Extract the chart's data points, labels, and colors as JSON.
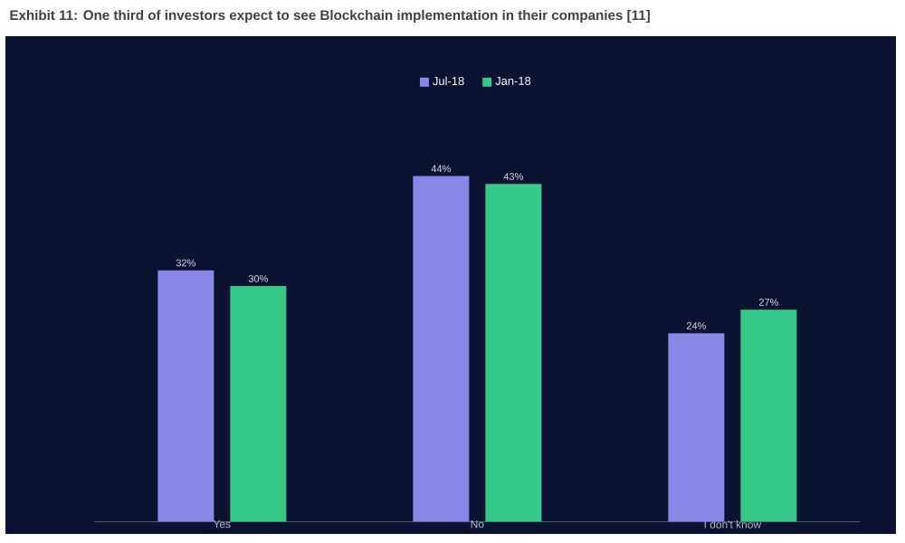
{
  "chart_data": {
    "type": "bar",
    "title": "Exhibit 11: One third of investors expect to see Blockchain implementation in their companies [11]",
    "categories": [
      "Yes",
      "No",
      "I don't know"
    ],
    "series": [
      {
        "name": "Jul-18",
        "color": "#8a87e8",
        "values": [
          32,
          44,
          24
        ],
        "value_labels": [
          "32%",
          "44%",
          "24%"
        ]
      },
      {
        "name": "Jan-18",
        "color": "#35c98a",
        "values": [
          30,
          43,
          27
        ],
        "value_labels": [
          "30%",
          "43%",
          "27%"
        ]
      }
    ],
    "legend": "top"
  }
}
